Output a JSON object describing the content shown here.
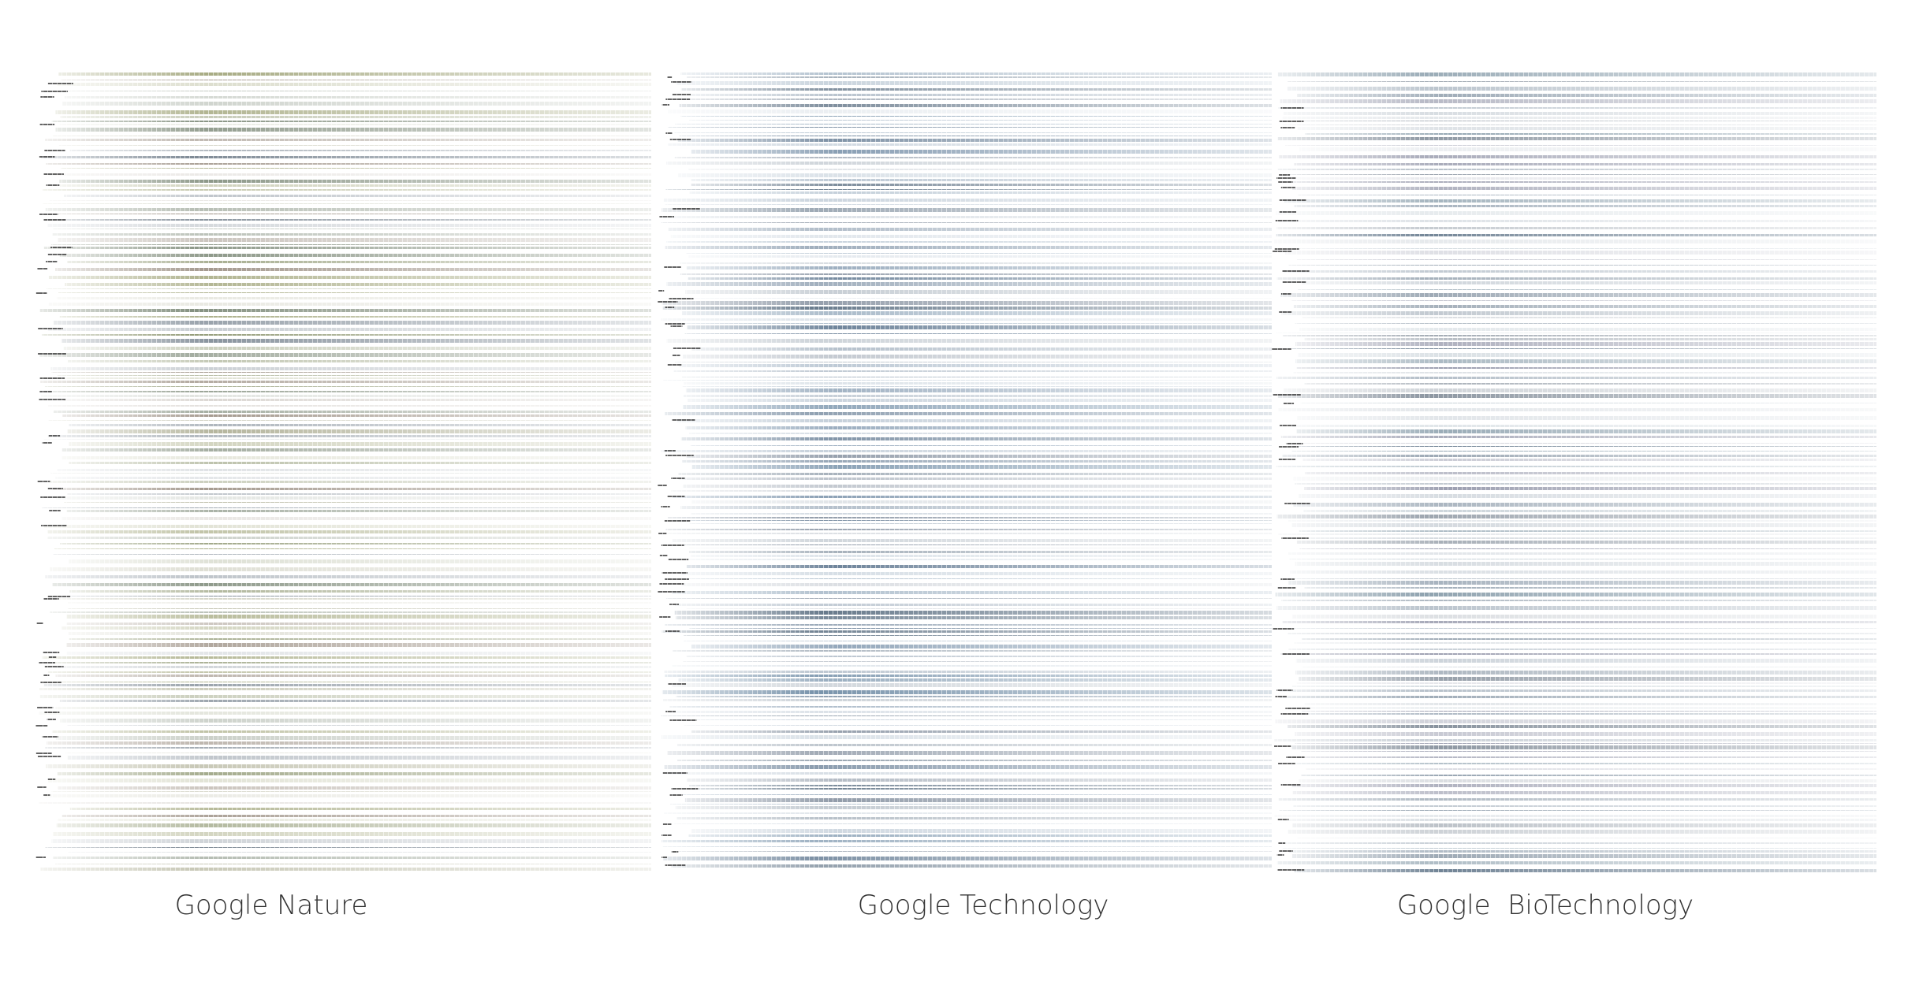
{
  "panels": [
    {
      "caption": "Google Nature"
    },
    {
      "caption": "Google Technology"
    },
    {
      "caption": "Google  BioTechnology"
    }
  ]
}
